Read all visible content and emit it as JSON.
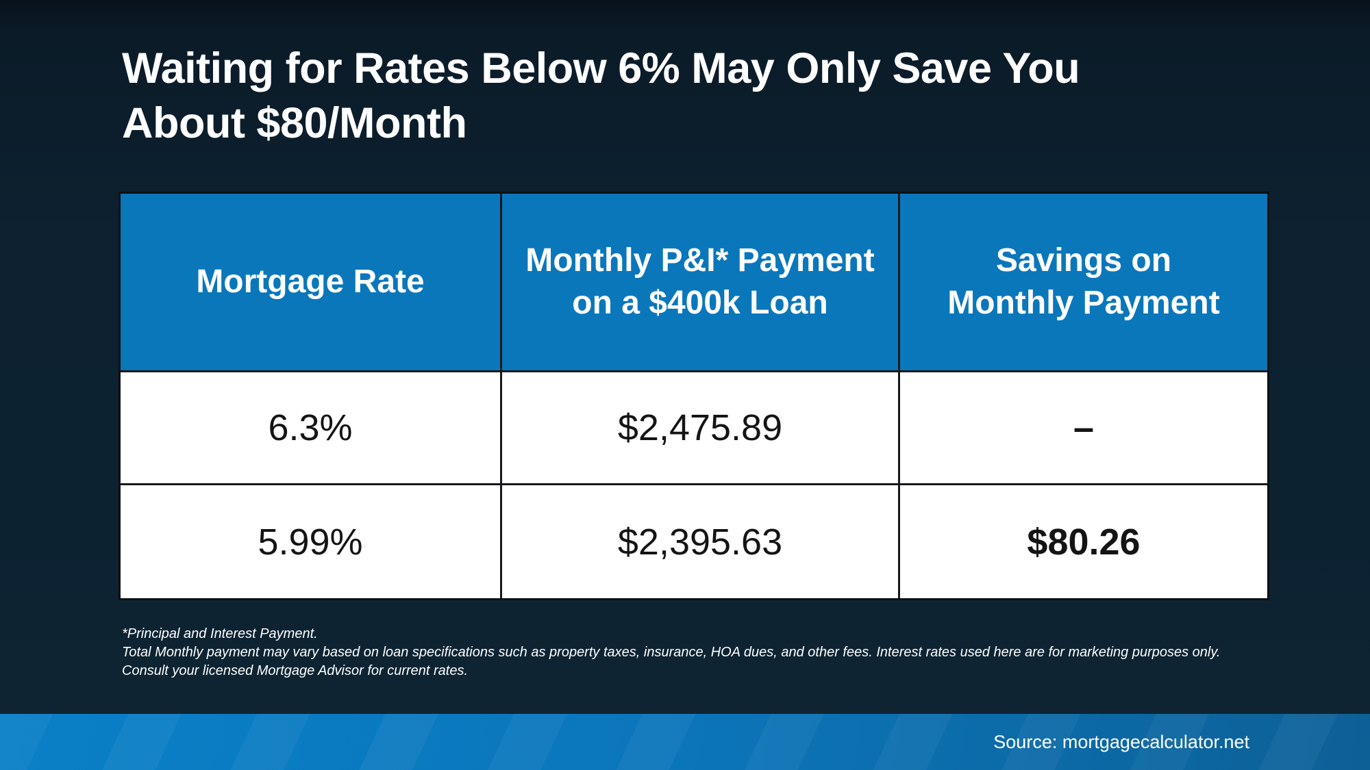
{
  "title": {
    "line1": "Waiting for Rates Below 6% May Only Save You",
    "line2": "About $80/Month"
  },
  "table": {
    "headers": [
      {
        "line1": "Mortgage Rate",
        "line2": ""
      },
      {
        "line1": "Monthly P&I* Payment",
        "line2": "on a $400k Loan"
      },
      {
        "line1": "Savings on",
        "line2": "Monthly Payment"
      }
    ],
    "rows": [
      {
        "rate": "6.3%",
        "payment": "$2,475.89",
        "savings": "–"
      },
      {
        "rate": "5.99%",
        "payment": "$2,395.63",
        "savings": "$80.26"
      }
    ]
  },
  "footnote": {
    "line1": "*Principal and Interest Payment.",
    "line2": "Total Monthly payment may vary based on loan specifications such as property taxes, insurance, HOA dues, and other fees. Interest rates used here are for marketing purposes only. Consult your licensed Mortgage Advisor for current rates."
  },
  "footer": {
    "source": "Source: mortgagecalculator.net"
  },
  "colors": {
    "background": "#0d2231",
    "header_blue": "#0b77bb",
    "footer_gradient_left": "#0a80c7",
    "footer_gradient_right": "#0d6096",
    "table_border": "#17191c",
    "text_light": "#ffffff",
    "text_dark": "#141414"
  },
  "chart_data": {
    "type": "table",
    "title": "Waiting for Rates Below 6% May Only Save You About $80/Month",
    "columns": [
      "Mortgage Rate",
      "Monthly P&I* Payment on a $400k Loan",
      "Savings on Monthly Payment"
    ],
    "rows": [
      [
        "6.3%",
        "$2,475.89",
        "–"
      ],
      [
        "5.99%",
        "$2,395.63",
        "$80.26"
      ]
    ],
    "source": "mortgagecalculator.net"
  }
}
